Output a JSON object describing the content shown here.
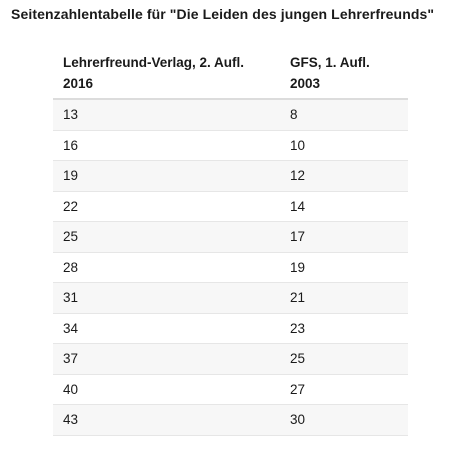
{
  "title": "Seitenzahlentabelle für \"Die Leiden des jungen Lehrerfreunds\"",
  "table": {
    "headers": [
      {
        "line1": "Lehrerfreund-Verlag, 2. Aufl.",
        "line2": "2016"
      },
      {
        "line1": "GFS, 1. Aufl.",
        "line2": "2003"
      }
    ],
    "rows": [
      [
        "13",
        "8"
      ],
      [
        "16",
        "10"
      ],
      [
        "19",
        "12"
      ],
      [
        "22",
        "14"
      ],
      [
        "25",
        "17"
      ],
      [
        "28",
        "19"
      ],
      [
        "31",
        "21"
      ],
      [
        "34",
        "23"
      ],
      [
        "37",
        "25"
      ],
      [
        "40",
        "27"
      ],
      [
        "43",
        "30"
      ]
    ]
  }
}
